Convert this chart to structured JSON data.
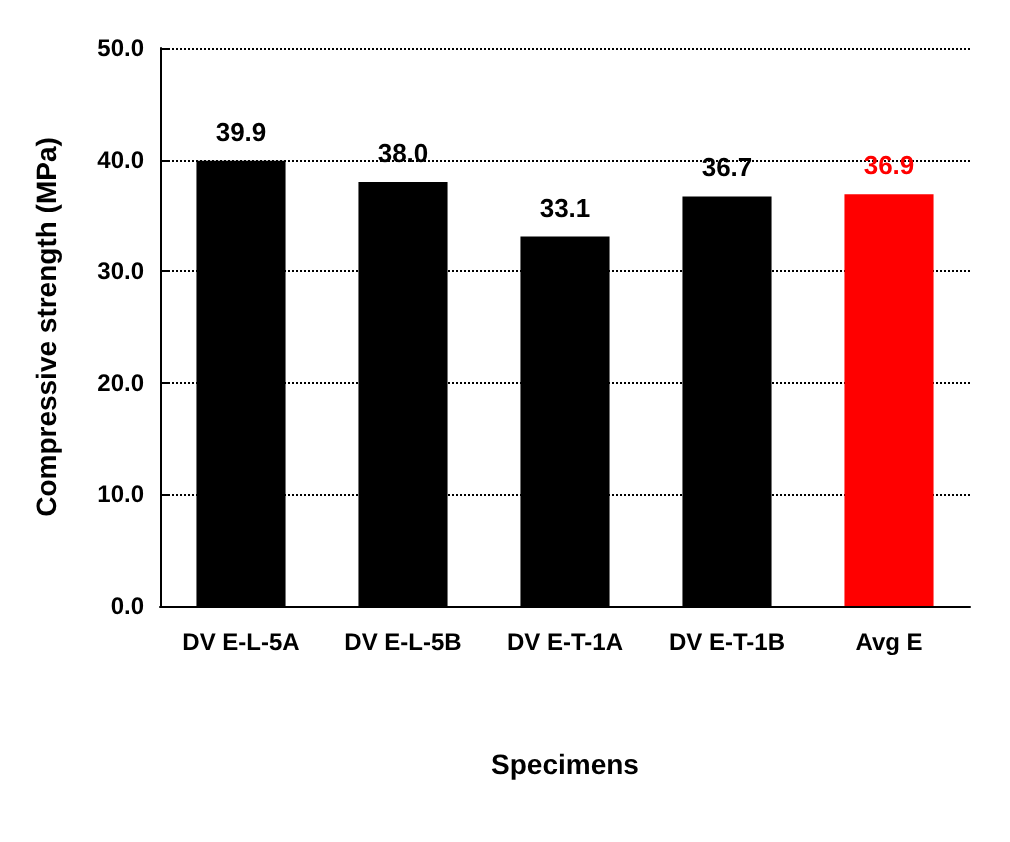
{
  "chart_data": {
    "type": "bar",
    "xlabel": "Specimens",
    "ylabel": "Compressive strength (MPa)",
    "categories": [
      "DV E-L-5A",
      "DV E-L-5B",
      "DV E-T-1A",
      "DV E-T-1B",
      "Avg E"
    ],
    "values": [
      39.9,
      38.0,
      33.1,
      36.7,
      36.9
    ],
    "colors": [
      "#000000",
      "#000000",
      "#000000",
      "#000000",
      "#ff0000"
    ],
    "value_labels": [
      "39.9",
      "38.0",
      "33.1",
      "36.7",
      "36.9"
    ],
    "ylim": [
      0,
      50
    ],
    "yticks": [
      {
        "value": 0,
        "label": "0.0"
      },
      {
        "value": 10,
        "label": "10.0"
      },
      {
        "value": 20,
        "label": "20.0"
      },
      {
        "value": 30,
        "label": "30.0"
      },
      {
        "value": 40,
        "label": "40.0"
      },
      {
        "value": 50,
        "label": "50.0"
      }
    ],
    "grid": "y"
  }
}
